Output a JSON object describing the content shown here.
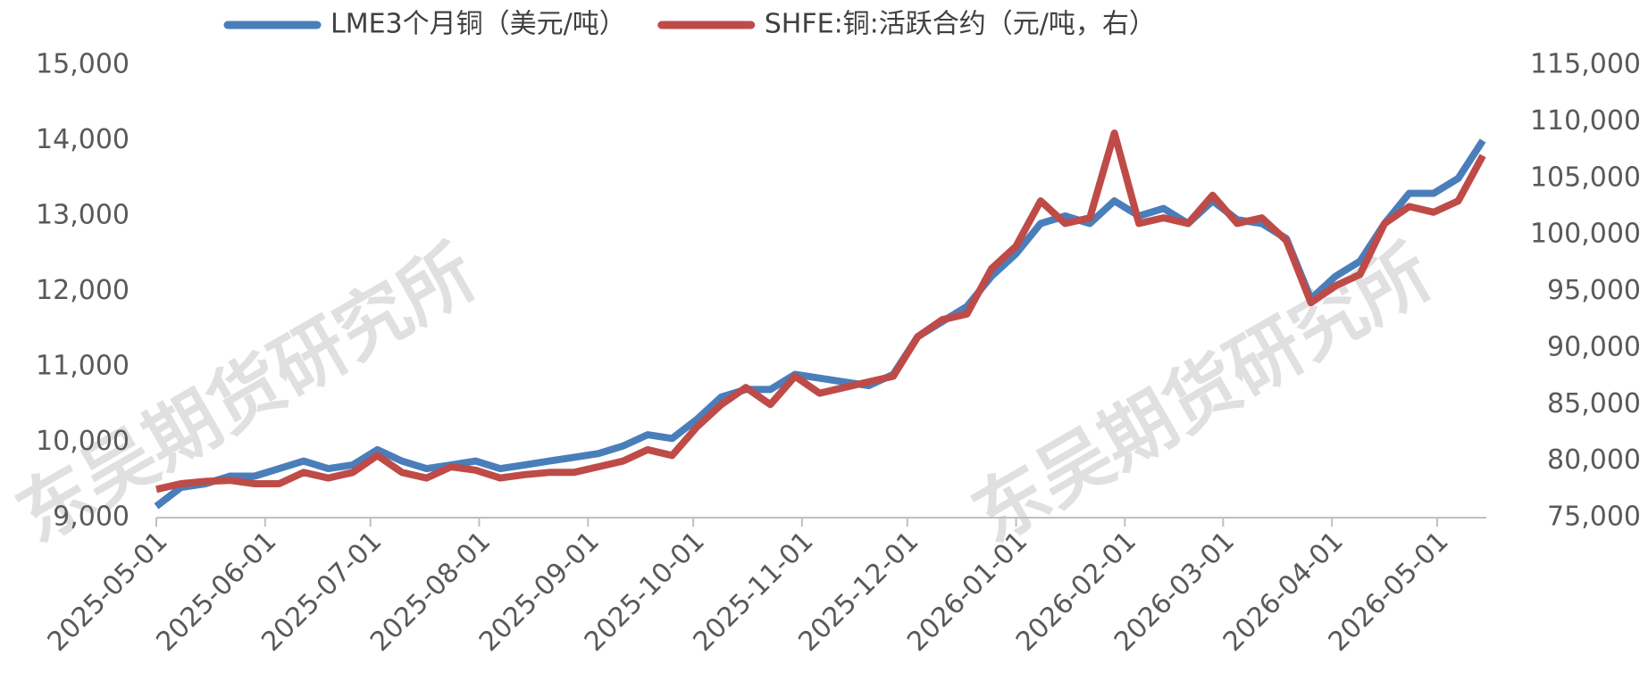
{
  "chart_data": {
    "type": "line",
    "watermark": "东吴期货研究所",
    "x": [
      "2025-05-01",
      "2025-05-08",
      "2025-05-15",
      "2025-05-22",
      "2025-05-29",
      "2025-06-05",
      "2025-06-12",
      "2025-06-19",
      "2025-06-26",
      "2025-07-03",
      "2025-07-10",
      "2025-07-17",
      "2025-07-24",
      "2025-07-31",
      "2025-08-07",
      "2025-08-14",
      "2025-08-21",
      "2025-08-28",
      "2025-09-04",
      "2025-09-11",
      "2025-09-18",
      "2025-09-25",
      "2025-10-02",
      "2025-10-09",
      "2025-10-16",
      "2025-10-23",
      "2025-10-30",
      "2025-11-06",
      "2025-11-13",
      "2025-11-20",
      "2025-11-27",
      "2025-12-04",
      "2025-12-11",
      "2025-12-18",
      "2025-12-25",
      "2026-01-01",
      "2026-01-08",
      "2026-01-15",
      "2026-01-22",
      "2026-01-29",
      "2026-02-05",
      "2026-02-12",
      "2026-02-19",
      "2026-02-26",
      "2026-03-05",
      "2026-03-12",
      "2026-03-19",
      "2026-03-26",
      "2026-04-02",
      "2026-04-09",
      "2026-04-16",
      "2026-04-23",
      "2026-04-30",
      "2026-05-07",
      "2026-05-14"
    ],
    "series": [
      {
        "name": "LME3个月铜（美元/吨）",
        "color": "#4a7ebb",
        "values": [
          9150,
          9400,
          9450,
          9550,
          9550,
          9650,
          9750,
          9650,
          9700,
          9900,
          9750,
          9650,
          9700,
          9750,
          9650,
          9700,
          9750,
          9800,
          9850,
          9950,
          10100,
          10050,
          10300,
          10600,
          10700,
          10700,
          10900,
          10850,
          10800,
          10750,
          10900,
          11400,
          11600,
          11800,
          12200,
          12500,
          12900,
          13000,
          12900,
          13200,
          13000,
          13100,
          12900,
          13200,
          12950,
          12900,
          12700,
          11900,
          12200,
          12400,
          12900,
          13300,
          13300,
          13500,
          14000
        ]
      },
      {
        "name": "SHFE:铜:活跃合约（元/吨，右）",
        "color": "#be4b48",
        "axis": "y2",
        "values": [
          77500,
          78000,
          78200,
          78300,
          78000,
          78000,
          79000,
          78500,
          79000,
          80500,
          79000,
          78500,
          79500,
          79200,
          78500,
          78800,
          79000,
          79000,
          79500,
          80000,
          81000,
          80500,
          83000,
          85000,
          86500,
          85000,
          87500,
          86000,
          86500,
          87000,
          87500,
          91000,
          92500,
          93000,
          97000,
          99000,
          103000,
          101000,
          101500,
          109000,
          101000,
          101500,
          101000,
          103500,
          101000,
          101500,
          99500,
          94000,
          95500,
          96500,
          101000,
          102500,
          102000,
          103000,
          107000
        ]
      }
    ],
    "xlim": [
      "2025-05-01",
      "2026-05-15"
    ],
    "xticks": [
      "2025-05-01",
      "2025-06-01",
      "2025-07-01",
      "2025-08-01",
      "2025-09-01",
      "2025-10-01",
      "2025-11-01",
      "2025-12-01",
      "2026-01-01",
      "2026-02-01",
      "2026-03-01",
      "2026-04-01",
      "2026-05-01"
    ],
    "ylim": [
      9000,
      15000
    ],
    "yticks": [
      {
        "value": 9000,
        "label": "9,000"
      },
      {
        "value": 10000,
        "label": "10,000"
      },
      {
        "value": 11000,
        "label": "11,000"
      },
      {
        "value": 12000,
        "label": "12,000"
      },
      {
        "value": 13000,
        "label": "13,000"
      },
      {
        "value": 14000,
        "label": "14,000"
      },
      {
        "value": 15000,
        "label": "15,000"
      }
    ],
    "y2lim": [
      75000,
      115000
    ],
    "y2ticks": [
      {
        "value": 75000,
        "label": "75,000"
      },
      {
        "value": 80000,
        "label": "80,000"
      },
      {
        "value": 85000,
        "label": "85,000"
      },
      {
        "value": 90000,
        "label": "90,000"
      },
      {
        "value": 95000,
        "label": "95,000"
      },
      {
        "value": 100000,
        "label": "100,000"
      },
      {
        "value": 105000,
        "label": "105,000"
      },
      {
        "value": 110000,
        "label": "110,000"
      },
      {
        "value": 115000,
        "label": "115,000"
      }
    ],
    "legend": "top"
  }
}
